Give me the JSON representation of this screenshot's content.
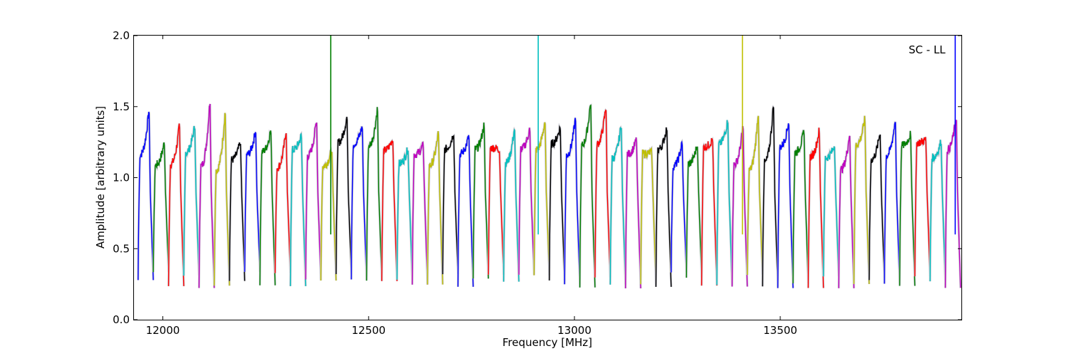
{
  "chart_data": {
    "type": "line",
    "title": "",
    "xlabel": "Frequency [MHz]",
    "ylabel": "Amplitude [arbitrary units]",
    "xlim": [
      11930,
      13940
    ],
    "ylim": [
      0.0,
      2.0
    ],
    "x_ticks": [
      {
        "value": 12000,
        "label": "12000"
      },
      {
        "value": 12500,
        "label": "12500"
      },
      {
        "value": 13000,
        "label": "13000"
      },
      {
        "value": 13500,
        "label": "13500"
      }
    ],
    "y_ticks": [
      {
        "value": 0.0,
        "label": "0.0"
      },
      {
        "value": 0.5,
        "label": "0.5"
      },
      {
        "value": 1.0,
        "label": "1.0"
      },
      {
        "value": 1.5,
        "label": "1.5"
      },
      {
        "value": 2.0,
        "label": "2.0"
      }
    ],
    "grid": false,
    "annotation": "SC - LL",
    "series_colors": [
      "#0000ff",
      "#007f00",
      "#ff0000",
      "#00bfbf",
      "#bf00bf",
      "#bfbf00",
      "#000000"
    ],
    "shadow_color": "#c8c8d0",
    "channel_start": 11940,
    "channel_width": 37.0,
    "channel_count": 54,
    "peaks": [
      1.49,
      1.25,
      1.38,
      1.37,
      1.56,
      1.48,
      1.26,
      1.34,
      1.34,
      1.34,
      1.3,
      1.42,
      1.2,
      1.44,
      1.37,
      1.5,
      1.28,
      1.21,
      1.23,
      1.33,
      1.32,
      1.3,
      1.38,
      1.2,
      1.36,
      1.35,
      1.41,
      1.36,
      1.43,
      1.55,
      1.51,
      1.38,
      1.27,
      1.18,
      1.36,
      1.25,
      1.24,
      1.27,
      1.41,
      1.37,
      1.47,
      1.53,
      1.4,
      1.33,
      1.34,
      1.23,
      1.32,
      1.42,
      1.33,
      1.42,
      1.31,
      1.27,
      1.26,
      1.44
    ],
    "spikes": [
      {
        "x": 12408,
        "y": 2.0,
        "color": "#007f00"
      },
      {
        "x": 12912,
        "y": 2.0,
        "color": "#00bfbf"
      },
      {
        "x": 13408,
        "y": 2.0,
        "color": "#bfbf00"
      },
      {
        "x": 13925,
        "y": 2.0,
        "color": "#0000ff"
      }
    ]
  }
}
